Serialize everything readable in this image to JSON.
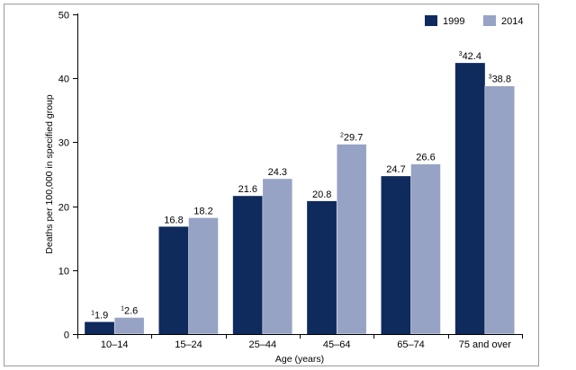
{
  "chart_data": {
    "type": "bar",
    "title": "",
    "xlabel": "Age (years)",
    "ylabel": "Deaths per 100,000 in specified group",
    "ylim": [
      0,
      50
    ],
    "yticks": [
      0,
      10,
      20,
      30,
      40,
      50
    ],
    "grid": false,
    "legend_position": "top-right",
    "categories": [
      "10–14",
      "15–24",
      "25–44",
      "45–64",
      "65–74",
      "75 and over"
    ],
    "series": [
      {
        "name": "1999",
        "color": "#0f2a5c",
        "values": [
          1.9,
          16.8,
          21.6,
          20.8,
          24.7,
          42.4
        ],
        "labels": [
          "1.9",
          "16.8",
          "21.6",
          "20.8",
          "24.7",
          "42.4"
        ],
        "superscripts": [
          "1",
          "",
          "",
          "",
          "",
          "3"
        ]
      },
      {
        "name": "2014",
        "color": "#97a3c4",
        "values": [
          2.6,
          18.2,
          24.3,
          29.7,
          26.6,
          38.8
        ],
        "labels": [
          "2.6",
          "18.2",
          "24.3",
          "29.7",
          "26.6",
          "38.8"
        ],
        "superscripts": [
          "1",
          "",
          "",
          "2",
          "",
          "3"
        ]
      }
    ]
  }
}
